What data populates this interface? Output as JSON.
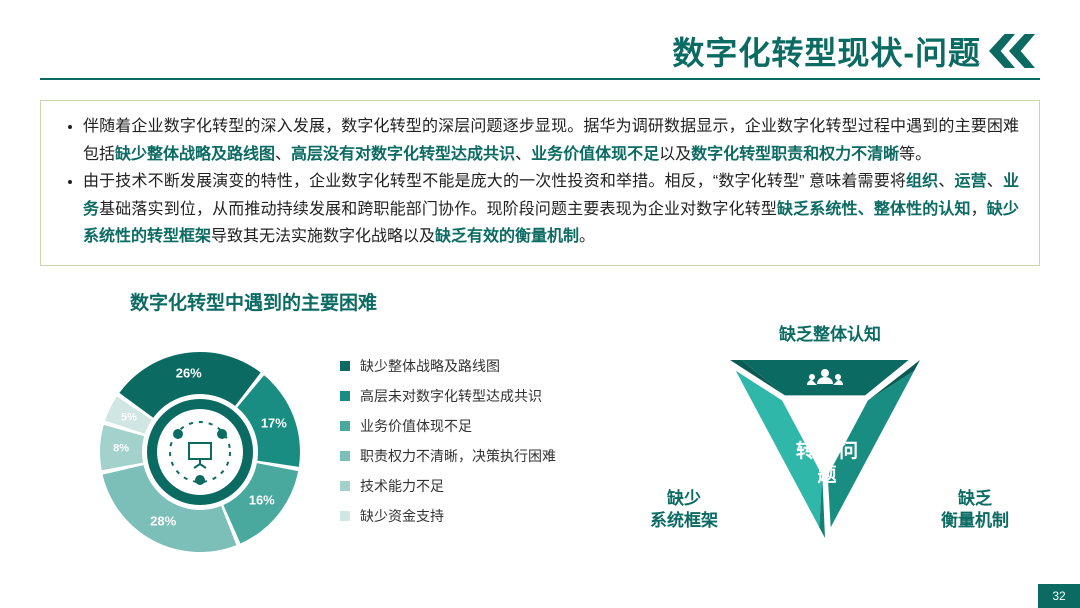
{
  "header": {
    "title": "数字化转型现状-问题"
  },
  "textbox": {
    "p1_a": "伴随着企业数字化转型的深入发展，数字化转型的深层问题逐步显现。据华为调研数据显示，企业数字化转型过程中遇到的主要困难包括",
    "p1_h1": "缺少整体战略及路线图",
    "p1_s1": "、",
    "p1_h2": "高层没有对数字化转型达成共识",
    "p1_s2": "、",
    "p1_h3": "业务价值体现不足",
    "p1_s3": "以及",
    "p1_h4": "数字化转型职责和权力不清晰",
    "p1_e": "等。",
    "p2_a": "由于技术不断发展演变的特性，企业数字化转型不能是庞大的一次性投资和举措。相反，“数字化转型” 意味着需要将",
    "p2_h1": "组织",
    "p2_s1": "、",
    "p2_h2": "运营",
    "p2_s2": "、",
    "p2_h3": "业务",
    "p2_b": "基础落实到位，从而推动持续发展和跨职能部门协作。现阶段问题主要表现为企业对数字化转型",
    "p2_h4": "缺乏系统性、整体性的认知",
    "p2_s3": "，",
    "p2_h5": "缺少系统性的转型框架",
    "p2_c": "导致其无法实施数字化战略以及",
    "p2_h6": "缺乏有效的衡量机制",
    "p2_e": "。"
  },
  "subtitle": "数字化转型中遇到的主要困难",
  "donut": {
    "type": "pie-donut",
    "segments": [
      {
        "label": "缺少整体战略及路线图",
        "pct": 26,
        "pct_txt": "26%",
        "color": "#0b6b63"
      },
      {
        "label": "高层未对数字化转型达成共识",
        "pct": 17,
        "pct_txt": "17%",
        "color": "#1a8d82"
      },
      {
        "label": "业务价值体现不足",
        "pct": 16,
        "pct_txt": "16%",
        "color": "#4aa99f"
      },
      {
        "label": "职责权力不清晰，决策执行困难",
        "pct": 28,
        "pct_txt": "28%",
        "color": "#7bbfb8"
      },
      {
        "label": "技术能力不足",
        "pct": 8,
        "pct_txt": "8%",
        "color": "#a3d2cc"
      },
      {
        "label": "缺少资金支持",
        "pct": 5,
        "pct_txt": "5%",
        "color": "#cfe6e3"
      }
    ],
    "start_angle_deg": -55,
    "gap_deg": 2.5,
    "outer_r": 100,
    "inner_r": 58,
    "inner_circle_color": "#0b6b63",
    "inner_circle_r": 53,
    "inner_bg_r": 43
  },
  "triangle": {
    "top": {
      "label": "缺乏整体认知",
      "band_color": "#0b6b63"
    },
    "left": {
      "label_l1": "缺少",
      "label_l2": "系统框架",
      "band_color": "#2fb8aa"
    },
    "right": {
      "label_l1": "缺乏",
      "label_l2": "衡量机制",
      "band_color": "#1a8d82"
    },
    "center": "转型\n问题"
  },
  "page_number": "32"
}
